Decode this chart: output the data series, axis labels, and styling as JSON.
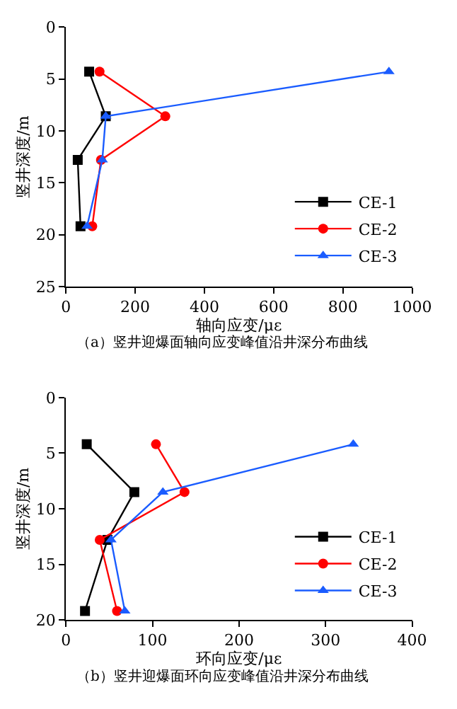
{
  "chart_data": [
    {
      "type": "line",
      "xlabel": "轴向应变/με",
      "ylabel": "竖井深度/m",
      "annotations": [
        "（a）竖井迎爆面轴向应变峰值沿井深分布曲线"
      ],
      "xlim": [
        0,
        1000
      ],
      "xticks": [
        0,
        200,
        400,
        600,
        800,
        1000
      ],
      "ylim": [
        25,
        0
      ],
      "yticks": [
        0,
        5,
        10,
        15,
        20,
        25
      ],
      "legend": "bottom right",
      "series": [
        {
          "name": "CE-1",
          "color": "#000000",
          "marker": "square",
          "x": [
            67,
            115,
            34,
            42
          ],
          "values": [
            4.3,
            8.6,
            12.8,
            19.2
          ]
        },
        {
          "name": "CE-2",
          "color": "#ff0000",
          "marker": "circle",
          "x": [
            97,
            287,
            101,
            76
          ],
          "values": [
            4.3,
            8.6,
            12.8,
            19.2
          ]
        },
        {
          "name": "CE-3",
          "color": "#1a5cff",
          "marker": "triangle",
          "x": [
            933,
            115,
            105,
            61
          ],
          "values": [
            4.3,
            8.6,
            12.8,
            19.2
          ]
        }
      ]
    },
    {
      "type": "line",
      "xlabel": "环向应变/με",
      "ylabel": "竖井深度/m",
      "annotations": [
        "（b）竖井迎爆面环向应变峰值沿井深分布曲线"
      ],
      "xlim": [
        0,
        400
      ],
      "xticks": [
        0,
        100,
        200,
        300,
        400
      ],
      "ylim": [
        20,
        0
      ],
      "yticks": [
        0,
        5,
        10,
        15,
        20
      ],
      "legend": "bottom right",
      "series": [
        {
          "name": "CE-1",
          "color": "#000000",
          "marker": "square",
          "x": [
            24,
            79,
            48,
            22
          ],
          "values": [
            4.2,
            8.5,
            12.8,
            19.2
          ]
        },
        {
          "name": "CE-2",
          "color": "#ff0000",
          "marker": "circle",
          "x": [
            104,
            137,
            39,
            59
          ],
          "values": [
            4.2,
            8.5,
            12.8,
            19.2
          ]
        },
        {
          "name": "CE-3",
          "color": "#1a5cff",
          "marker": "triangle",
          "x": [
            332,
            112,
            52,
            68
          ],
          "values": [
            4.2,
            8.5,
            12.8,
            19.2
          ]
        }
      ]
    }
  ]
}
